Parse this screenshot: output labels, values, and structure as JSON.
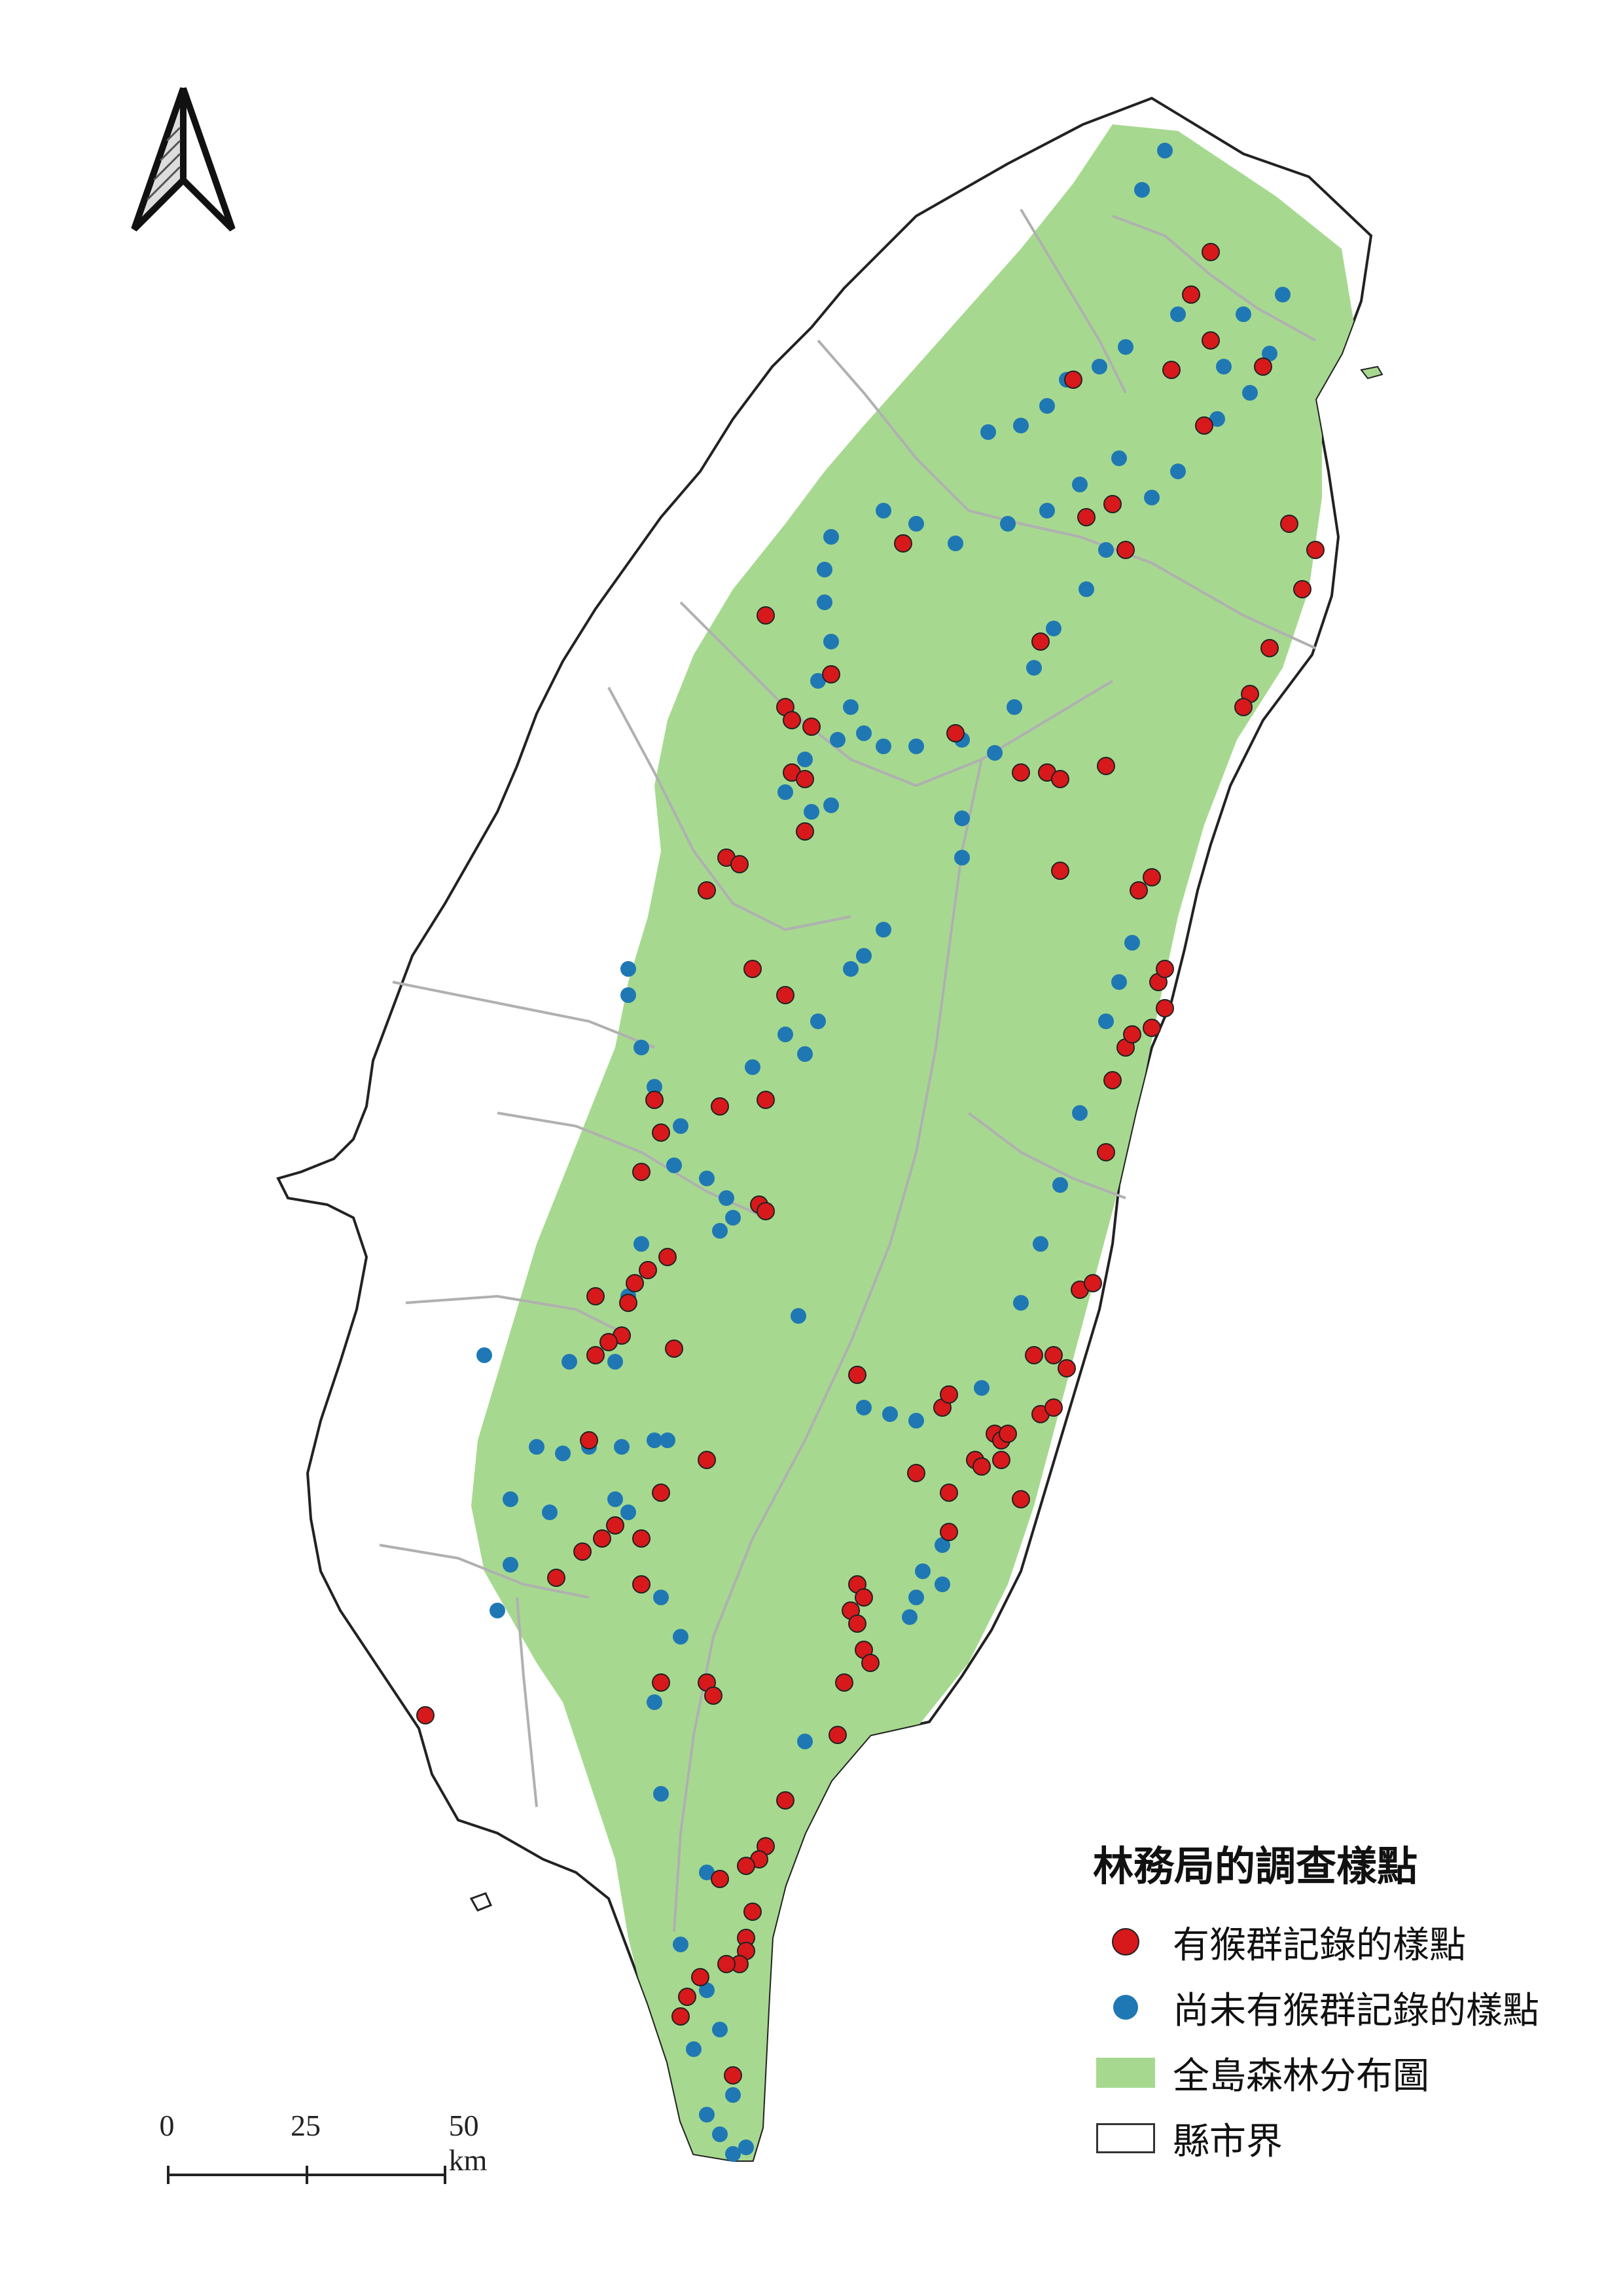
{
  "legend": {
    "title": "林務局的調查樣點",
    "items": [
      {
        "label": "有猴群記錄的樣點",
        "symbol": "red-dot"
      },
      {
        "label": "尚未有猴群記錄的樣點",
        "symbol": "blue-dot"
      },
      {
        "label": "全島森林分布圖",
        "symbol": "forest-swatch"
      },
      {
        "label": "縣市界",
        "symbol": "county-box"
      }
    ]
  },
  "scale_bar": {
    "ticks": [
      "0",
      "25",
      "50 km"
    ],
    "values_km": [
      0,
      25,
      50
    ]
  },
  "colors": {
    "forest": "#a6d98f",
    "monkey_present": "#d7191c",
    "monkey_absent": "#1f78b4",
    "boundary": "#333333",
    "county_line": "#b0b0b0"
  },
  "north_arrow": {
    "icon": "north-arrow-icon"
  }
}
